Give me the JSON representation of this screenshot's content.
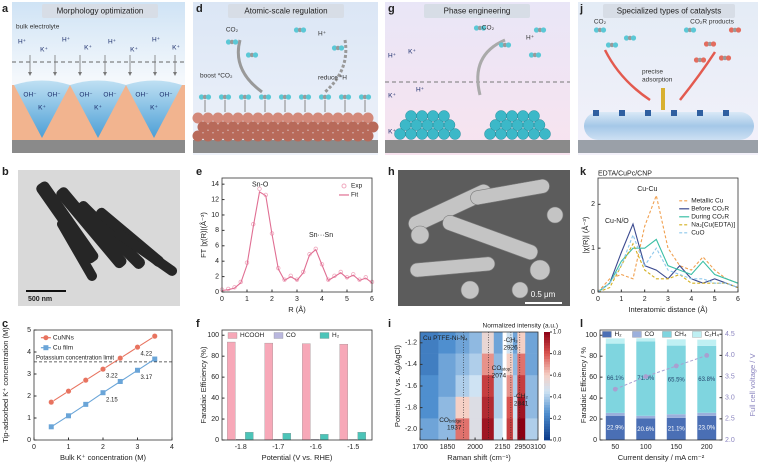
{
  "illustrations": [
    {
      "label": "a",
      "title": "Morphology optimization",
      "notes": [
        "bulk electrolyte"
      ],
      "ions": [
        "H⁺",
        "K⁺",
        "H⁺",
        "K⁺",
        "H⁺",
        "K⁺",
        "H⁺",
        "K⁺",
        "OH⁻",
        "K⁺",
        "OH⁻",
        "OH⁻",
        "K⁺",
        "OH⁻",
        "OH⁻",
        "K⁺",
        "OH⁻"
      ]
    },
    {
      "label": "d",
      "title": "Atomic-scale regulation",
      "notes": [
        "CO₂",
        "boost *CO₂",
        "H⁺",
        "reduce *H"
      ],
      "ions": []
    },
    {
      "label": "g",
      "title": "Phase engineering",
      "notes": [
        "CO₂",
        "H⁺"
      ],
      "ions": [
        "H⁺",
        "K⁺",
        "K⁺",
        "H⁺",
        "K⁺"
      ]
    },
    {
      "label": "j",
      "title": "Specialized types of catalysts",
      "notes": [
        "CO₂",
        "CO₂R products",
        "precise",
        "adsorption"
      ],
      "ions": []
    }
  ],
  "images": [
    {
      "label": "b",
      "scale": "500 nm"
    },
    {
      "label": "h",
      "scale": "0.5 μm"
    }
  ],
  "chart_data": [
    {
      "type": "line",
      "label": "c",
      "xlabel": "Bulk K⁺ concentration (M)",
      "ylabel": "Tip-adsorbed K⁺ concentration (M)",
      "xlim": [
        0,
        4
      ],
      "xticks": [
        0,
        1,
        2,
        3,
        4
      ],
      "ylim": [
        0,
        5
      ],
      "yticks": [
        0,
        1,
        2,
        3,
        4,
        5
      ],
      "legend": "upper left",
      "limit": {
        "value": 3.55,
        "label": "Potassium concentration limit"
      },
      "series": [
        {
          "name": "CuNNs",
          "color": "#e8735f",
          "marker": "circle",
          "x": [
            0.5,
            1,
            1.5,
            2,
            2.5,
            3,
            3.5
          ],
          "values": [
            1.72,
            2.22,
            2.72,
            3.22,
            3.72,
            4.22,
            4.72
          ],
          "value_labels": [
            null,
            null,
            null,
            "3.22",
            null,
            "4.22",
            null
          ]
        },
        {
          "name": "Cu film",
          "color": "#6aa5d8",
          "marker": "square",
          "x": [
            0.5,
            1,
            1.5,
            2,
            2.5,
            3,
            3.5
          ],
          "values": [
            0.6,
            1.1,
            1.62,
            2.15,
            2.66,
            3.17,
            3.68
          ],
          "value_labels": [
            null,
            null,
            null,
            "2.15",
            null,
            "3.17",
            null
          ]
        }
      ]
    },
    {
      "type": "line",
      "label": "e",
      "xlabel": "R (Å)",
      "ylabel": "FT |χ(R)|(Å⁻³)",
      "xlim": [
        0,
        6
      ],
      "xticks": [
        0,
        1,
        2,
        3,
        4,
        5,
        6
      ],
      "ylim": [
        0,
        14.8
      ],
      "yticks": [
        0,
        2,
        4,
        6,
        8,
        10,
        12,
        14
      ],
      "legend": "upper right",
      "annotations": [
        "Sn-O",
        "Sn···Sn"
      ],
      "series": [
        {
          "name": "Exp",
          "color": "#f0a9bf",
          "style": "markers",
          "x": [
            0,
            0.25,
            0.5,
            0.75,
            1,
            1.25,
            1.5,
            1.75,
            2,
            2.25,
            2.5,
            2.75,
            3,
            3.25,
            3.5,
            3.75,
            4,
            4.25,
            4.5,
            4.75,
            5,
            5.25,
            5.5,
            5.75,
            6
          ],
          "values": [
            0.3,
            0.4,
            0.6,
            1.3,
            3.8,
            8.8,
            13.4,
            12.6,
            7.6,
            3.1,
            1.6,
            2.1,
            1.6,
            2.6,
            4.9,
            5.6,
            3.6,
            1.6,
            2.1,
            2.6,
            1.9,
            2.3,
            1.6,
            1.9,
            1.3
          ]
        },
        {
          "name": "Fit",
          "color": "#e06f93",
          "style": "line",
          "x": [
            0,
            0.25,
            0.5,
            0.75,
            1,
            1.25,
            1.5,
            1.75,
            2,
            2.25,
            2.5,
            2.75,
            3,
            3.25,
            3.5,
            3.75,
            4,
            4.25,
            4.5,
            4.75,
            5,
            5.25,
            5.5,
            5.75,
            6
          ],
          "values": [
            0.2,
            0.3,
            0.5,
            1.2,
            3.5,
            8.5,
            13.0,
            12.5,
            7.5,
            3.0,
            1.5,
            2.0,
            1.5,
            2.5,
            4.8,
            5.5,
            3.5,
            1.5,
            2.0,
            2.5,
            1.8,
            2.2,
            1.5,
            1.8,
            1.2
          ]
        }
      ]
    },
    {
      "type": "bar",
      "label": "f",
      "xlabel": "Potential (V vs. RHE)",
      "ylabel": "Faradaic Efficiency (%)",
      "categories": [
        "-1.8",
        "-1.7",
        "-1.6",
        "-1.5"
      ],
      "ylim": [
        0,
        105
      ],
      "yticks": [
        0,
        20,
        40,
        60,
        80,
        100
      ],
      "legend": "top",
      "series": [
        {
          "name": "HCOOH",
          "color": "#f7a8b8",
          "values": [
            93.5,
            92.5,
            92,
            91.5
          ]
        },
        {
          "name": "CO",
          "color": "#b9b7de",
          "values": [
            0.8,
            0.7,
            0.6,
            0.5
          ]
        },
        {
          "name": "H₂",
          "color": "#4cc4b8",
          "values": [
            7.5,
            6.5,
            5.5,
            7.5
          ]
        }
      ]
    },
    {
      "type": "heatmap",
      "label": "i",
      "xlabel": "Raman shift (cm⁻¹)",
      "ylabel": "Potential (V vs. Ag/AgCl)",
      "xlim": [
        1700,
        3100
      ],
      "xbreak": [
        2150,
        2800
      ],
      "xticks": [
        1700,
        1850,
        2000,
        2150,
        2950,
        3100
      ],
      "ylim": [
        -2.1,
        -1.1
      ],
      "yticks": [
        -1.2,
        -1.4,
        -1.6,
        -1.8,
        {
          "value": -2,
          "label": "-2.0"
        }
      ],
      "colorbar": {
        "label": "Normalized intensity (a.u.)",
        "lim": [
          0,
          1
        ],
        "ticks": [
          {
            "value": 0,
            "label": "0.0"
          },
          0.2,
          0.4,
          0.6,
          0.8,
          {
            "value": 1,
            "label": "1.0"
          }
        ]
      },
      "x": [
        1750,
        1850,
        1937,
        2000,
        2074,
        2130,
        2841,
        2880,
        2926,
        3030
      ],
      "y": [
        -1.2,
        -1.4,
        -1.6,
        -1.8,
        -2.0
      ],
      "z": [
        [
          0.2,
          0.25,
          0.3,
          0.35,
          0.55,
          0.3,
          0.45,
          0.3,
          0.6,
          0.3
        ],
        [
          0.2,
          0.3,
          0.35,
          0.4,
          0.7,
          0.35,
          0.6,
          0.35,
          0.75,
          0.3
        ],
        [
          0.25,
          0.3,
          0.4,
          0.45,
          0.85,
          0.4,
          0.7,
          0.4,
          0.85,
          0.35
        ],
        [
          0.25,
          0.35,
          0.6,
          0.5,
          0.9,
          0.4,
          0.8,
          0.45,
          0.95,
          0.35
        ],
        [
          0.3,
          0.35,
          0.75,
          0.5,
          0.95,
          0.45,
          0.85,
          0.5,
          1.0,
          0.4
        ]
      ],
      "annotations": [
        {
          "label": "Cu PTFE-Ni-N₄"
        },
        {
          "label": "CO",
          "sub": "atop",
          "x": 2074
        },
        {
          "label": "CO",
          "sub": "bridge",
          "x": 1937
        },
        {
          "label": "-CH₂",
          "x": 2841
        },
        {
          "label": "-CH₃",
          "x": 2926
        }
      ]
    },
    {
      "type": "line",
      "label": "k",
      "xlabel": "Interatomic distance (Å)",
      "ylabel": "|χ(R)| (Å⁻³)",
      "xlim": [
        0,
        6
      ],
      "xticks": [
        0,
        1,
        2,
        3,
        4,
        5,
        6
      ],
      "ylim": [
        0,
        2.6
      ],
      "yticks": [
        0,
        1,
        2
      ],
      "legend": "upper right",
      "annotations": [
        "EDTA/CuPc/CNP",
        "Cu-Cu",
        "Cu-N/O"
      ],
      "series": [
        {
          "name": "Metallic Cu",
          "color": "#f0a050",
          "dash": true,
          "x": [
            0,
            0.5,
            1,
            1.5,
            2,
            2.5,
            3,
            3.5,
            4,
            4.5,
            5,
            5.5,
            6
          ],
          "values": [
            0,
            0.3,
            0.4,
            0.3,
            1.5,
            2.2,
            1.0,
            0.6,
            0.5,
            0.8,
            0.5,
            0.3,
            0.2
          ]
        },
        {
          "name": "Before CO₂R",
          "color": "#3b4a8f",
          "x": [
            0,
            0.5,
            1,
            1.5,
            2,
            2.5,
            3,
            3.5,
            4,
            4.5,
            5,
            5.5,
            6
          ],
          "values": [
            0,
            0.2,
            0.9,
            1.55,
            0.6,
            0.5,
            0.3,
            0.6,
            0.3,
            0.2,
            0.3,
            0.2,
            0.1
          ]
        },
        {
          "name": "During CO₂R",
          "color": "#3bbfa6",
          "x": [
            0,
            0.5,
            1,
            1.5,
            2,
            2.5,
            3,
            3.5,
            4,
            4.5,
            5,
            5.5,
            6
          ],
          "values": [
            0,
            0.2,
            0.7,
            1.0,
            1.0,
            1.2,
            0.6,
            0.5,
            0.4,
            0.7,
            0.4,
            0.3,
            0.2
          ]
        },
        {
          "name": "Na₂[Cu(EDTA)]",
          "color": "#d4b020",
          "dash": true,
          "x": [
            0,
            0.5,
            1,
            1.5,
            2,
            2.5,
            3,
            3.5,
            4,
            4.5,
            5,
            5.5,
            6
          ],
          "values": [
            0,
            0.1,
            0.6,
            1.1,
            0.5,
            0.3,
            0.3,
            0.4,
            0.2,
            0.2,
            0.2,
            0.2,
            0.1
          ]
        },
        {
          "name": "CuO",
          "color": "#8ec8ec",
          "dash": true,
          "x": [
            0,
            0.5,
            1,
            1.5,
            2,
            2.5,
            3,
            3.5,
            4,
            4.5,
            5,
            5.5,
            6
          ],
          "values": [
            0,
            0.2,
            0.6,
            1.3,
            0.6,
            1.0,
            0.5,
            0.4,
            0.3,
            0.3,
            0.2,
            0.2,
            0.1
          ]
        }
      ]
    },
    {
      "type": "bar",
      "stacked": true,
      "label": "l",
      "xlabel": "Current density / mA cm⁻²",
      "ylabel": "Faradaic Efficiency / %",
      "y2label": "Full cell voltage / V",
      "categories": [
        "50",
        "100",
        "150",
        "200"
      ],
      "ylim": [
        0,
        105
      ],
      "yticks": [
        0,
        20,
        40,
        60,
        80,
        100
      ],
      "y2lim": [
        2,
        4.6
      ],
      "y2ticks": [
        {
          "value": 2,
          "label": "2.0"
        },
        2.5,
        {
          "value": 3,
          "label": "3.0"
        },
        3.5,
        {
          "value": 4,
          "label": "4.0"
        },
        4.5
      ],
      "legend": "top",
      "series": [
        {
          "name": "H₂",
          "color": "#4a6fb5",
          "values": [
            22.9,
            20.6,
            21.1,
            23.0
          ],
          "value_labels": [
            "22.9%",
            "20.6%",
            "21.1%",
            "23.0%"
          ]
        },
        {
          "name": "CO",
          "color": "#9bb0dc",
          "values": [
            3,
            2.5,
            3.5,
            3
          ]
        },
        {
          "name": "CH₄",
          "color": "#7fd5df",
          "values": [
            66.1,
            71.0,
            65.5,
            63.8
          ],
          "value_labels": [
            "66.1%",
            "71.0%",
            "65.5%",
            "63.8%"
          ]
        },
        {
          "name": "C₂H₄",
          "color": "#bff0f3",
          "values": [
            5,
            3,
            6,
            6
          ]
        },
        {
          "axis": "y2",
          "color": "#a99fd0",
          "dash": true,
          "values": [
            3.2,
            3.5,
            3.75,
            4.0
          ]
        }
      ]
    }
  ]
}
